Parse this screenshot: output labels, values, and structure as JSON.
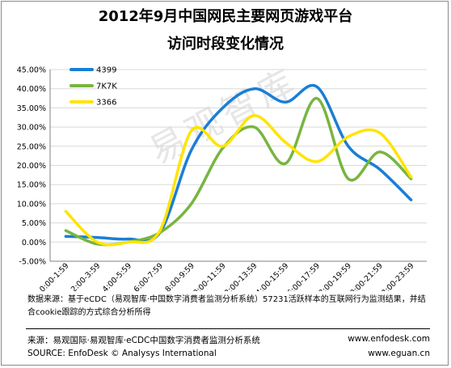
{
  "title": {
    "line1": "2012年9月中国网民主要网页游戏平台",
    "line2": "访问时段变化情况"
  },
  "watermark": "易观智库",
  "chart_data": {
    "type": "line",
    "categories": [
      "0:00-1:59",
      "2:00-3:59",
      "4:00-5:59",
      "6:00-7:59",
      "8:00-9:59",
      "10:00-11:59",
      "12:00-13:59",
      "14:00-15:59",
      "16:00-17:59",
      "18:00-19:59",
      "20:00-21:59",
      "22:00-23:59"
    ],
    "y_ticks": [
      "45.00%",
      "40.00%",
      "35.00%",
      "30.00%",
      "25.00%",
      "20.00%",
      "15.00%",
      "10.00%",
      "5.00%",
      "0.00%",
      "-5.00%"
    ],
    "ylim": [
      -5,
      45
    ],
    "ylabel": "",
    "xlabel": "",
    "grid": true,
    "legend_position": "top-left",
    "series": [
      {
        "name": "4399",
        "color": "#1a7ed6",
        "values": [
          1.5,
          1.2,
          0.8,
          2.5,
          24,
          35,
          40,
          36.5,
          40.5,
          25,
          19,
          11
        ]
      },
      {
        "name": "7K7K",
        "color": "#77b540",
        "values": [
          3.0,
          -0.5,
          0.0,
          2.5,
          10,
          24.5,
          30,
          20.5,
          37.5,
          16.5,
          23.5,
          16.5
        ]
      },
      {
        "name": "3366",
        "color": "#ffe400",
        "values": [
          8.0,
          0.0,
          0.0,
          3.0,
          29,
          25,
          33,
          26,
          21,
          27.5,
          28.5,
          17
        ]
      }
    ]
  },
  "footer": {
    "note": "数据来源：基于eCDC（易观智库·中国数字消费者监测分析系统）57231活跃样本的互联网行为监测结果，并结合cookie跟踪的方式综合分析所得",
    "source_cn": "来源：易观国际·易观智库·eCDC中国数字消费者监测分析系统",
    "source_en": "SOURCE: EnfoDesk © Analysys International",
    "site1": "www.enfodesk.com",
    "site2": "www.eguan.cn"
  }
}
